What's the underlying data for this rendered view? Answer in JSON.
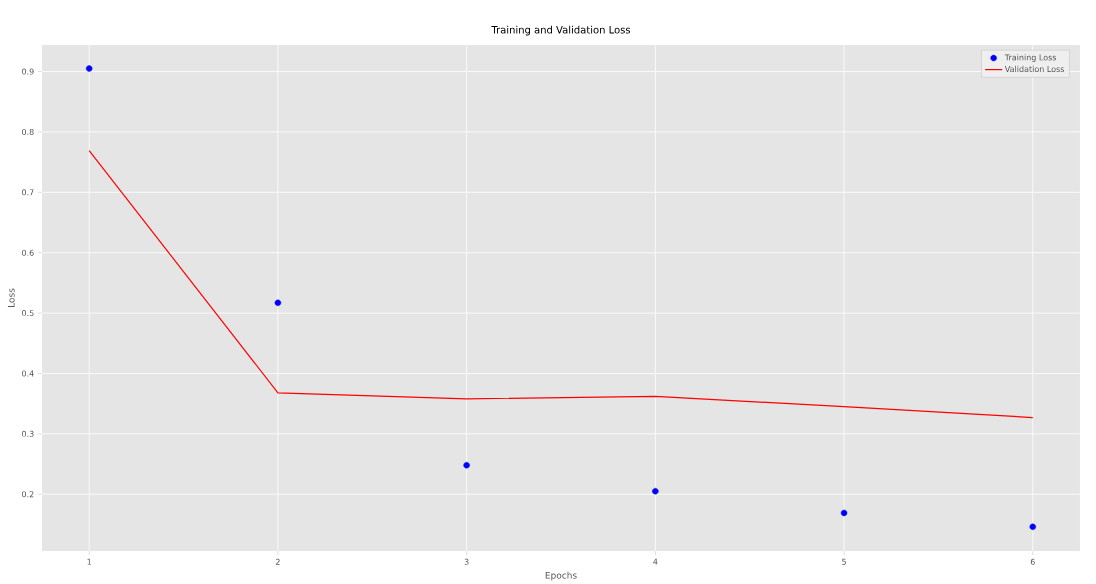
{
  "chart_data": {
    "type": "line",
    "title": "Training and Validation Loss",
    "xlabel": "Epochs",
    "ylabel": "Loss",
    "x": [
      1,
      2,
      3,
      4,
      5,
      6
    ],
    "series": [
      {
        "name": "Training Loss",
        "type": "scatter",
        "color": "#0000ff",
        "marker": "circle",
        "values": [
          0.905,
          0.517,
          0.248,
          0.205,
          0.169,
          0.146
        ]
      },
      {
        "name": "Validation Loss",
        "color": "#ff0000",
        "marker": "none",
        "values": [
          0.769,
          0.368,
          0.358,
          0.362,
          0.345,
          0.327
        ]
      }
    ],
    "xlim": [
      0.75,
      6.25
    ],
    "ylim": [
      0.106,
      0.944
    ],
    "xticks": [
      1,
      2,
      3,
      4,
      5,
      6
    ],
    "yticks": [
      0.2,
      0.3,
      0.4,
      0.5,
      0.6,
      0.7,
      0.8,
      0.9
    ],
    "grid": true,
    "legend": "top right"
  }
}
